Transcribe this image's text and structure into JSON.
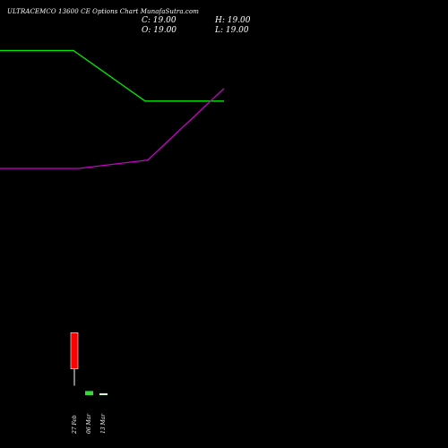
{
  "header": {
    "title": "ULTRACEMCO 13600  CE Options  Chart MunafaSutra.com",
    "close": "C: 19.00",
    "high": "H: 19.00",
    "open": "O: 19.00",
    "low": "L: 19.00"
  },
  "chart_data": {
    "type": "candlestick",
    "categories": [
      "27 Feb",
      "06 Mar",
      "13 Mar"
    ],
    "candles": [
      {
        "date": "27 Feb",
        "open": 105,
        "high": 105,
        "low": 42,
        "close": 62,
        "color": "#ff0000"
      }
    ],
    "volume": [
      {
        "date": "06 Mar",
        "value": 1.0,
        "color": "#33dd33"
      },
      {
        "date": "13 Mar",
        "value": 0.35,
        "color": "#ccffcc"
      }
    ],
    "series": [
      {
        "color": "#00ee00",
        "points": [
          [
            0,
            440
          ],
          [
            0.82,
            440
          ],
          [
            1.62,
            380
          ],
          [
            2.5,
            380
          ]
        ]
      },
      {
        "color": "#cc00cc",
        "points": [
          [
            0,
            300
          ],
          [
            0.88,
            300
          ],
          [
            1.65,
            310
          ],
          [
            2.5,
            395
          ]
        ]
      }
    ],
    "ylim": [
      0,
      500
    ],
    "grid": false
  }
}
